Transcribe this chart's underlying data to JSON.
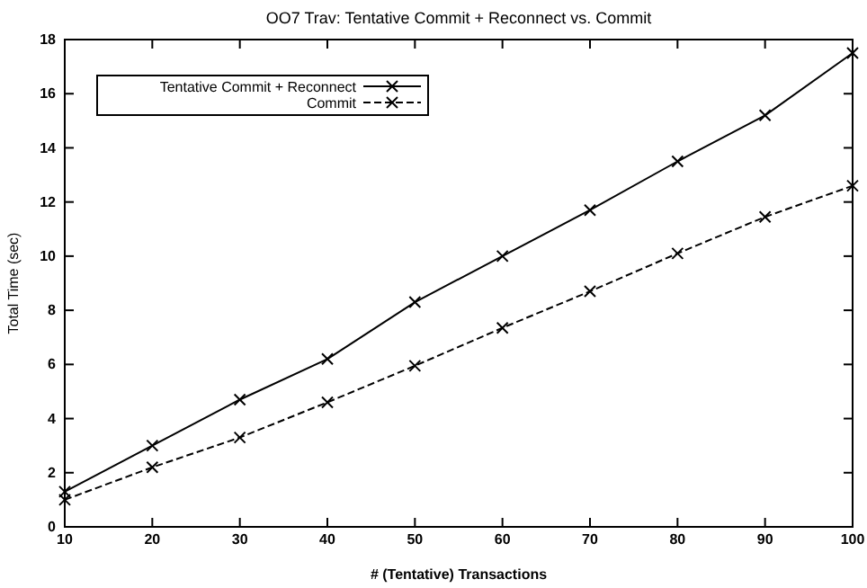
{
  "chart_data": {
    "type": "line",
    "title": "OO7 Trav: Tentative Commit + Reconnect vs. Commit",
    "xlabel": "# (Tentative) Transactions",
    "ylabel": "Total Time (sec)",
    "x": [
      10,
      20,
      30,
      40,
      50,
      60,
      70,
      80,
      90,
      100
    ],
    "series": [
      {
        "name": "Tentative Commit + Reconnect",
        "color": "#000000",
        "line_style": "solid",
        "marker": "cross",
        "values": [
          1.3,
          3.0,
          4.7,
          6.2,
          8.3,
          10.0,
          11.7,
          13.5,
          15.2,
          17.5
        ]
      },
      {
        "name": "Commit",
        "color": "#000000",
        "line_style": "dashed",
        "marker": "cross",
        "values": [
          1.0,
          2.2,
          3.3,
          4.6,
          5.95,
          7.35,
          8.7,
          10.1,
          11.45,
          12.6
        ]
      }
    ],
    "xlim": [
      10,
      100
    ],
    "xticks": [
      10,
      20,
      30,
      40,
      50,
      60,
      70,
      80,
      90,
      100
    ],
    "ylim": [
      0,
      18
    ],
    "yticks": [
      0,
      2,
      4,
      6,
      8,
      10,
      12,
      14,
      16,
      18
    ],
    "grid": false,
    "legend": "top left"
  }
}
